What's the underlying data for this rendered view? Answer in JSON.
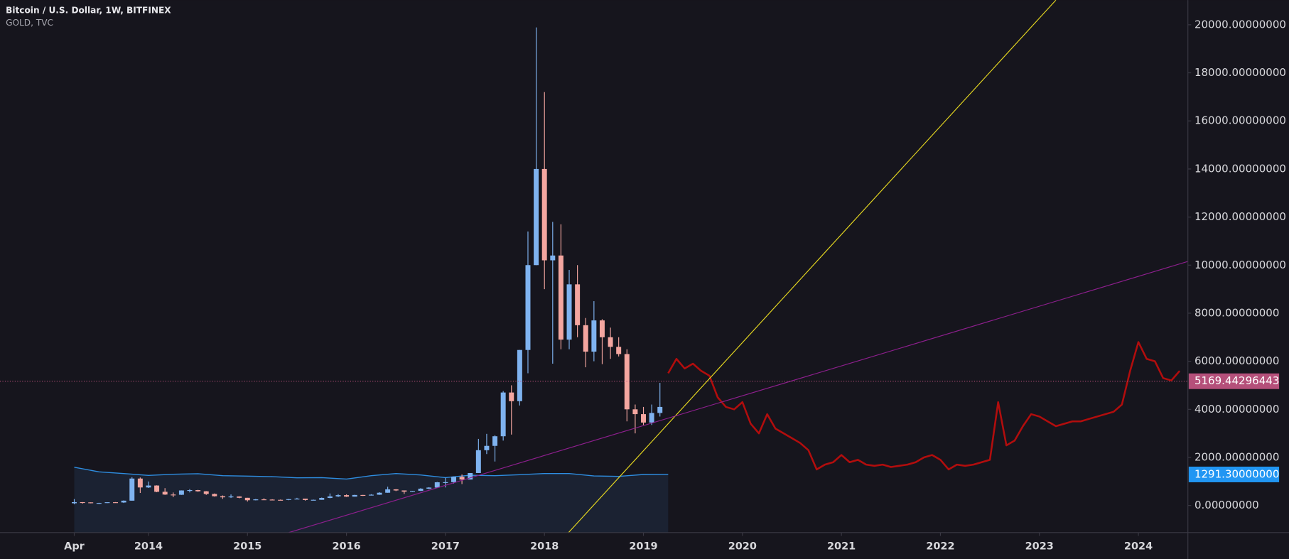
{
  "chart_data": {
    "type": "candlestick",
    "xlim": [
      "2012-07",
      "2024-07"
    ],
    "ylim": [
      -1128,
      21026
    ],
    "xticks": [
      {
        "value": "2013-04",
        "label": "Apr"
      },
      {
        "value": "2014-01",
        "label": "2014"
      },
      {
        "value": "2015-01",
        "label": "2015"
      },
      {
        "value": "2016-01",
        "label": "2016"
      },
      {
        "value": "2017-01",
        "label": "2017"
      },
      {
        "value": "2018-01",
        "label": "2018"
      },
      {
        "value": "2019-01",
        "label": "2019"
      },
      {
        "value": "2020-01",
        "label": "2020"
      },
      {
        "value": "2021-01",
        "label": "2021"
      },
      {
        "value": "2022-01",
        "label": "2022"
      },
      {
        "value": "2023-01",
        "label": "2023"
      },
      {
        "value": "2024-01",
        "label": "2024"
      }
    ],
    "yticks": [
      {
        "value": 0,
        "label": "0.00000000"
      },
      {
        "value": 2000,
        "label": "2000.00000000"
      },
      {
        "value": 4000,
        "label": "4000.00000000"
      },
      {
        "value": 6000,
        "label": "6000.00000000"
      },
      {
        "value": 8000,
        "label": "8000.00000000"
      },
      {
        "value": 10000,
        "label": "10000.00000000"
      },
      {
        "value": 12000,
        "label": "12000.00000000"
      },
      {
        "value": 14000,
        "label": "14000.00000000"
      },
      {
        "value": 16000,
        "label": "16000.00000000"
      },
      {
        "value": 18000,
        "label": "18000.00000000"
      },
      {
        "value": 20000,
        "label": "20000.00000000"
      }
    ],
    "series": [
      {
        "name": "Bitcoin / U.S. Dollar, 1W, BITFINEX",
        "type": "candlestick",
        "up_color": "#7fb3f0",
        "down_color": "#f4a6a0",
        "x": [
          "2013-04",
          "2013-05",
          "2013-06",
          "2013-07",
          "2013-08",
          "2013-09",
          "2013-10",
          "2013-11",
          "2013-12",
          "2014-01",
          "2014-02",
          "2014-03",
          "2014-04",
          "2014-05",
          "2014-06",
          "2014-07",
          "2014-08",
          "2014-09",
          "2014-10",
          "2014-11",
          "2014-12",
          "2015-01",
          "2015-02",
          "2015-03",
          "2015-04",
          "2015-05",
          "2015-06",
          "2015-07",
          "2015-08",
          "2015-09",
          "2015-10",
          "2015-11",
          "2015-12",
          "2016-01",
          "2016-02",
          "2016-03",
          "2016-04",
          "2016-05",
          "2016-06",
          "2016-07",
          "2016-08",
          "2016-09",
          "2016-10",
          "2016-11",
          "2016-12",
          "2017-01",
          "2017-02",
          "2017-03",
          "2017-04",
          "2017-05",
          "2017-06",
          "2017-07",
          "2017-08",
          "2017-09",
          "2017-10",
          "2017-11",
          "2017-12",
          "2018-01",
          "2018-02",
          "2018-03",
          "2018-04",
          "2018-05",
          "2018-06",
          "2018-07",
          "2018-08",
          "2018-09",
          "2018-10",
          "2018-11",
          "2018-12",
          "2019-01",
          "2019-02",
          "2019-03"
        ],
        "open": [
          93,
          139,
          129,
          97,
          106,
          135,
          125,
          200,
          1120,
          750,
          830,
          570,
          455,
          445,
          625,
          640,
          590,
          480,
          385,
          340,
          375,
          320,
          218,
          254,
          245,
          235,
          230,
          263,
          285,
          230,
          236,
          314,
          378,
          430,
          368,
          437,
          416,
          448,
          530,
          670,
          625,
          575,
          608,
          700,
          745,
          965,
          970,
          1190,
          1080,
          1350,
          2300,
          2480,
          2880,
          4700,
          4340,
          6470,
          10000,
          14000,
          10200,
          10400,
          6900,
          9200,
          7500,
          6400,
          7700,
          7000,
          6600,
          6300,
          4000,
          3800,
          3450,
          3850
        ],
        "high": [
          266,
          140,
          130,
          110,
          125,
          140,
          210,
          1175,
          1165,
          1000,
          840,
          720,
          540,
          630,
          680,
          650,
          600,
          500,
          420,
          460,
          380,
          320,
          270,
          300,
          260,
          250,
          270,
          320,
          285,
          245,
          330,
          500,
          470,
          460,
          445,
          440,
          470,
          550,
          780,
          680,
          625,
          610,
          720,
          760,
          980,
          1150,
          1200,
          1290,
          1350,
          2770,
          2980,
          2920,
          4760,
          5000,
          6470,
          11400,
          19890,
          17200,
          11800,
          11700,
          9800,
          10000,
          7800,
          8500,
          7750,
          7400,
          7000,
          6500,
          4200,
          4100,
          4200,
          5100
        ],
        "low": [
          50,
          80,
          88,
          65,
          100,
          110,
          105,
          200,
          520,
          730,
          550,
          440,
          345,
          440,
          545,
          570,
          440,
          370,
          275,
          310,
          300,
          165,
          210,
          240,
          210,
          225,
          220,
          255,
          200,
          225,
          236,
          300,
          350,
          355,
          370,
          395,
          415,
          440,
          530,
          600,
          480,
          570,
          600,
          680,
          740,
          750,
          915,
          890,
          1080,
          1350,
          2140,
          1830,
          2700,
          2950,
          4160,
          5500,
          10000,
          9000,
          5900,
          6500,
          6500,
          7000,
          5750,
          6000,
          5880,
          6100,
          6200,
          3500,
          3000,
          3350,
          3350,
          3700
        ],
        "close": [
          139,
          129,
          97,
          106,
          135,
          125,
          200,
          1120,
          750,
          830,
          570,
          455,
          445,
          625,
          640,
          590,
          480,
          385,
          340,
          375,
          320,
          218,
          254,
          245,
          235,
          230,
          263,
          285,
          230,
          236,
          314,
          378,
          430,
          368,
          437,
          416,
          448,
          530,
          670,
          625,
          575,
          608,
          700,
          745,
          965,
          970,
          1190,
          1080,
          1350,
          2300,
          2480,
          2880,
          4700,
          4340,
          6470,
          10000,
          14000,
          10200,
          10400,
          6900,
          9200,
          7500,
          6400,
          7700,
          7000,
          6600,
          6300,
          4000,
          3800,
          3450,
          3850,
          4100
        ]
      },
      {
        "name": "GOLD, TVC",
        "type": "area",
        "color": "#2e8de0",
        "fill": "#1b2232",
        "x": [
          "2013-04",
          "2013-07",
          "2013-10",
          "2014-01",
          "2014-04",
          "2014-07",
          "2014-10",
          "2015-01",
          "2015-04",
          "2015-07",
          "2015-10",
          "2016-01",
          "2016-04",
          "2016-07",
          "2016-10",
          "2017-01",
          "2017-04",
          "2017-07",
          "2017-10",
          "2018-01",
          "2018-04",
          "2018-07",
          "2018-10",
          "2019-01",
          "2019-04"
        ],
        "values": [
          1590,
          1400,
          1330,
          1250,
          1300,
          1320,
          1240,
          1220,
          1200,
          1150,
          1160,
          1100,
          1240,
          1330,
          1270,
          1160,
          1260,
          1240,
          1280,
          1330,
          1330,
          1230,
          1210,
          1290,
          1291.3
        ]
      },
      {
        "type": "line",
        "color": "#b20d0d",
        "x": [
          "2019-04",
          "2019-05",
          "2019-06",
          "2019-07",
          "2019-08",
          "2019-09",
          "2019-10",
          "2019-11",
          "2019-12",
          "2020-01",
          "2020-02",
          "2020-03",
          "2020-04",
          "2020-05",
          "2020-06",
          "2020-07",
          "2020-08",
          "2020-09",
          "2020-10",
          "2020-11",
          "2020-12",
          "2021-01",
          "2021-02",
          "2021-03",
          "2021-04",
          "2021-05",
          "2021-06",
          "2021-07",
          "2021-08",
          "2021-09",
          "2021-10",
          "2021-11",
          "2021-12",
          "2022-01",
          "2022-02",
          "2022-03",
          "2022-04",
          "2022-05",
          "2022-06",
          "2022-07",
          "2022-08",
          "2022-09",
          "2022-10",
          "2022-11",
          "2022-12",
          "2023-01",
          "2023-02",
          "2023-03",
          "2023-04",
          "2023-05",
          "2023-06",
          "2023-07",
          "2023-08",
          "2023-09",
          "2023-10",
          "2023-11",
          "2023-12",
          "2024-01",
          "2024-02",
          "2024-03",
          "2024-04",
          "2024-05",
          "2024-06"
        ],
        "values": [
          5500,
          6100,
          5700,
          5900,
          5600,
          5400,
          4500,
          4100,
          4000,
          4300,
          3400,
          3000,
          3800,
          3200,
          3000,
          2800,
          2600,
          2300,
          1500,
          1700,
          1800,
          2100,
          1800,
          1900,
          1700,
          1650,
          1700,
          1600,
          1650,
          1700,
          1800,
          2000,
          2100,
          1900,
          1500,
          1700,
          1650,
          1700,
          1800,
          1900,
          4300,
          2500,
          2700,
          3300,
          3800,
          3700,
          3500,
          3300,
          3400,
          3500,
          3500,
          3600,
          3700,
          3800,
          3900,
          4200,
          5600,
          6800,
          6100,
          6000,
          5300,
          5200,
          5600
        ]
      }
    ],
    "lines": [
      {
        "color": "#e6d820",
        "points": [
          [
            "2018-01",
            -2222
          ],
          [
            "2023-03",
            21026
          ]
        ]
      },
      {
        "color": "#8e1f8e",
        "points": [
          [
            "2015-06",
            -1128
          ],
          [
            "2024-07",
            10154
          ]
        ]
      }
    ],
    "price_labels": [
      {
        "value": 5169.44296443,
        "label": "5169.44296443",
        "color": "#b5507a",
        "dashed": true
      },
      {
        "value": 1291.3,
        "label": "1291.30000000",
        "color": "#2196f3",
        "dashed": false
      }
    ]
  }
}
